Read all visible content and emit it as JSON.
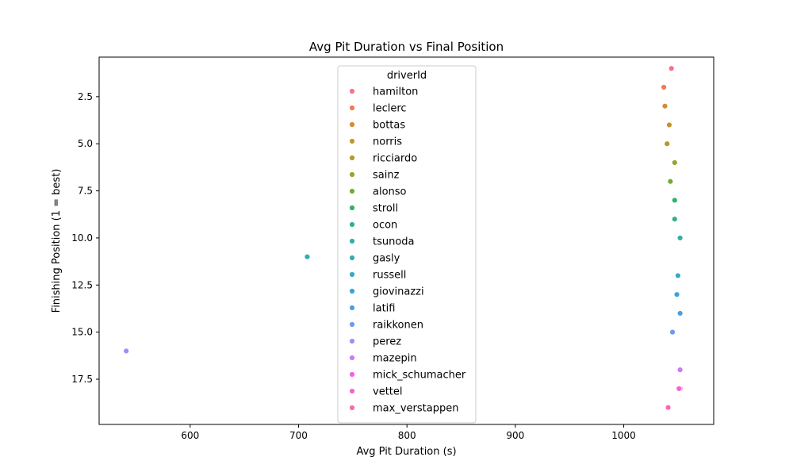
{
  "chart_data": {
    "type": "scatter",
    "title": "Avg Pit Duration vs Final Position",
    "xlabel": "Avg Pit Duration (s)",
    "ylabel": "Finishing Position (1 = best)",
    "xlim": [
      516,
      1083
    ],
    "ylim": [
      19.9,
      0.4
    ],
    "y_inverted": true,
    "xticks": [
      600,
      700,
      800,
      900,
      1000
    ],
    "xtick_labels": [
      "600",
      "700",
      "800",
      "900",
      "1000"
    ],
    "yticks": [
      2.5,
      5.0,
      7.5,
      10.0,
      12.5,
      15.0,
      17.5
    ],
    "ytick_labels": [
      "2.5",
      "5.0",
      "7.5",
      "10.0",
      "12.5",
      "15.0",
      "17.5"
    ],
    "grid": false,
    "legend": {
      "title": "driverId",
      "placement": "upper-center"
    },
    "series": [
      {
        "name": "hamilton",
        "color": "#f77189",
        "points": [
          [
            1044,
            1
          ]
        ]
      },
      {
        "name": "leclerc",
        "color": "#f47a4e",
        "points": [
          [
            1037,
            2
          ]
        ]
      },
      {
        "name": "bottas",
        "color": "#da8a31",
        "points": [
          [
            1038,
            3
          ]
        ]
      },
      {
        "name": "norris",
        "color": "#c49331",
        "points": [
          [
            1042,
            4
          ]
        ]
      },
      {
        "name": "ricciardo",
        "color": "#b09a31",
        "points": [
          [
            1040,
            5
          ]
        ]
      },
      {
        "name": "sainz",
        "color": "#97a431",
        "points": [
          [
            1047,
            6
          ]
        ]
      },
      {
        "name": "alonso",
        "color": "#6fac31",
        "points": [
          [
            1043,
            7
          ]
        ]
      },
      {
        "name": "stroll",
        "color": "#32b166",
        "points": [
          [
            1047,
            8
          ]
        ]
      },
      {
        "name": "ocon",
        "color": "#34ae8e",
        "points": [
          [
            1047,
            9
          ]
        ]
      },
      {
        "name": "tsunoda",
        "color": "#36ada4",
        "points": [
          [
            1052,
            10
          ]
        ]
      },
      {
        "name": "gasly",
        "color": "#37abb4",
        "points": [
          [
            708,
            11
          ]
        ]
      },
      {
        "name": "russell",
        "color": "#38a9c5",
        "points": [
          [
            1050,
            12
          ]
        ]
      },
      {
        "name": "giovinazzi",
        "color": "#3ba3d9",
        "points": [
          [
            1049,
            13
          ]
        ]
      },
      {
        "name": "latifi",
        "color": "#4a9ee6",
        "points": [
          [
            1052,
            14
          ]
        ]
      },
      {
        "name": "raikkonen",
        "color": "#6e9af4",
        "points": [
          [
            1045,
            15
          ]
        ]
      },
      {
        "name": "perez",
        "color": "#a48cf4",
        "points": [
          [
            541,
            16
          ]
        ]
      },
      {
        "name": "mazepin",
        "color": "#cc7af4",
        "points": [
          [
            1052,
            17
          ]
        ]
      },
      {
        "name": "mick_schumacher",
        "color": "#f45fe8",
        "points": [
          [
            1052,
            18
          ]
        ]
      },
      {
        "name": "vettel",
        "color": "#f565cc",
        "points": [
          [
            1051,
            18
          ]
        ]
      },
      {
        "name": "max_verstappen",
        "color": "#f66bad",
        "points": [
          [
            1041,
            19
          ]
        ]
      }
    ]
  }
}
